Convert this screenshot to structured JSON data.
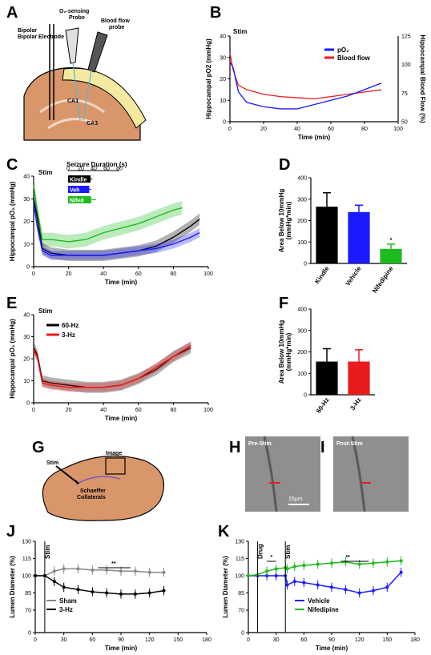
{
  "panels": {
    "A": "A",
    "B": "B",
    "C": "C",
    "D": "D",
    "E": "E",
    "F": "F",
    "G": "G",
    "H": "H",
    "I": "I",
    "J": "J",
    "K": "K"
  },
  "A": {
    "electrode": "Bipolar Electrode",
    "o2_probe_line1": "O₂-sensing",
    "o2_probe_line2": "Probe",
    "bf_line1": "Blood flow",
    "bf_line2": "probe",
    "ca1": "CA1",
    "ca3": "CA3"
  },
  "B": {
    "stim": "Stim",
    "ylabel": "Hippocampal pO2 (mmHg)",
    "y2label": "Hippocampal Blood Flow (%)",
    "xlabel": "Time (min)",
    "legend_po2": "pO₂",
    "legend_bf": "Blood flow",
    "yticks": [
      "0",
      "10",
      "20",
      "30",
      "40"
    ],
    "y2ticks": [
      "50",
      "75",
      "100",
      "125"
    ],
    "xticks": [
      "0",
      "20",
      "40",
      "60",
      "80",
      "100"
    ]
  },
  "C": {
    "stim": "Stim",
    "ylabel": "Hippocampal pO₂ (mmHg)",
    "xlabel": "Time (min)",
    "yticks": [
      "0",
      "10",
      "20",
      "30",
      "40"
    ],
    "xticks": [
      "0",
      "20",
      "40",
      "60",
      "80",
      "100"
    ],
    "inset_title": "Seizure Duration (s)",
    "inset_ticks": [
      "0",
      "20",
      "40",
      "60",
      "80"
    ],
    "inset_bars": [
      "Kindle",
      "Veh",
      "Nifed"
    ]
  },
  "D": {
    "ylabel_line1": "Area Below 10mmHg",
    "ylabel_line2": "(mmHg*min)",
    "yticks": [
      "0",
      "100",
      "200",
      "300",
      "400"
    ],
    "star": "*"
  },
  "E": {
    "stim": "Stim",
    "ylabel": "Hippocampal pO₂ (mmHg)",
    "xlabel": "Time (min)",
    "yticks": [
      "0",
      "10",
      "20",
      "30",
      "40"
    ],
    "xticks": [
      "0",
      "20",
      "40",
      "60",
      "80",
      "100"
    ],
    "legend_a": "60-Hz",
    "legend_b": "3-Hz"
  },
  "F": {
    "ylabel_line1": "Area Below 10mmHg",
    "ylabel_line2": "(mmHg*min)",
    "yticks": [
      "0",
      "100",
      "200",
      "300",
      "400"
    ]
  },
  "G": {
    "stim": "Stim",
    "image": "Image",
    "collat1": "Schaeffer",
    "collat2": "Collaterals"
  },
  "H": {
    "label": "Pre-Stim",
    "scalebar": "15μm"
  },
  "I": {
    "label": "Post-Stim"
  },
  "J": {
    "stim": "Stim",
    "stars": "**",
    "ylabel": "Lumen Diameter (%)",
    "xlabel": "Time (min)",
    "yticks": [
      "0",
      "70",
      "85",
      "100",
      "115",
      "130"
    ],
    "xticks": [
      "0",
      "30",
      "60",
      "90",
      "120",
      "150",
      "180"
    ],
    "legend_sham": "Sham",
    "legend_3hz": "3-Hz"
  },
  "K": {
    "drug": "Drug",
    "stim": "Stim",
    "star1": "*",
    "stars": "**",
    "ylabel": "Lumen Diameter (%)",
    "xlabel": "Time (min)",
    "yticks": [
      "0",
      "70",
      "85",
      "100",
      "115",
      "130"
    ],
    "xticks": [
      "0",
      "30",
      "60",
      "90",
      "120",
      "150",
      "180"
    ],
    "legend_veh": "Vehicle",
    "legend_nif": "Nifedipine"
  },
  "colors": {
    "blue": "#1a1aff",
    "red": "#e81c1c",
    "green": "#1dbb1d",
    "black": "#000000",
    "gray": "#888888",
    "tissue": "#d9966a"
  },
  "chart_data": [
    {
      "panel": "B",
      "type": "line",
      "xlabel": "Time (min)",
      "ylabel": "Hippocampal pO2 (mmHg)",
      "xlim": [
        0,
        100
      ],
      "ylim": [
        0,
        40
      ],
      "series": [
        {
          "name": "pO₂",
          "axis": "left",
          "x": [
            0,
            2,
            5,
            10,
            20,
            30,
            40,
            50,
            60,
            70,
            80,
            90
          ],
          "values": [
            28,
            25,
            14,
            9,
            7,
            6,
            6,
            8,
            10,
            12,
            15,
            18
          ]
        },
        {
          "name": "Blood flow",
          "axis": "right",
          "y2lim": [
            50,
            125
          ],
          "x": [
            0,
            2,
            5,
            10,
            20,
            30,
            40,
            50,
            60,
            70,
            80,
            90
          ],
          "values": [
            110,
            95,
            82,
            78,
            74,
            72,
            71,
            70,
            72,
            74,
            76,
            78
          ]
        }
      ]
    },
    {
      "panel": "C",
      "type": "line",
      "xlabel": "Time (min)",
      "ylabel": "Hippocampal pO₂ (mmHg)",
      "xlim": [
        0,
        100
      ],
      "ylim": [
        0,
        40
      ],
      "series": [
        {
          "name": "Kindle",
          "x": [
            0,
            2,
            5,
            10,
            20,
            30,
            40,
            50,
            60,
            70,
            80,
            90,
            95
          ],
          "values": [
            30,
            22,
            8,
            6,
            5,
            5,
            5,
            6,
            7,
            9,
            13,
            18,
            21
          ]
        },
        {
          "name": "Vehicle",
          "x": [
            0,
            2,
            5,
            10,
            20,
            30,
            40,
            50,
            60,
            70,
            80,
            90,
            95
          ],
          "values": [
            28,
            18,
            7,
            5,
            5,
            5,
            5,
            6,
            7,
            8,
            10,
            13,
            15
          ]
        },
        {
          "name": "Nifedipine",
          "x": [
            0,
            2,
            5,
            10,
            20,
            30,
            40,
            50,
            60,
            70,
            80,
            85
          ],
          "values": [
            36,
            25,
            12,
            12,
            11,
            12,
            15,
            17,
            19,
            22,
            25,
            26
          ]
        }
      ],
      "inset": {
        "title": "Seizure Duration (s)",
        "categories": [
          "Kindle",
          "Veh",
          "Nifed"
        ],
        "values": [
          35,
          33,
          36
        ],
        "errors": [
          3,
          3,
          8
        ],
        "xlim": [
          0,
          80
        ]
      }
    },
    {
      "panel": "D",
      "type": "bar",
      "ylabel": "Area Below 10mmHg (mmHg*min)",
      "ylim": [
        0,
        400
      ],
      "categories": [
        "Kindle",
        "Vehicle",
        "Nifedipine"
      ],
      "values": [
        265,
        240,
        68
      ],
      "errors": [
        65,
        32,
        22
      ]
    },
    {
      "panel": "E",
      "type": "line",
      "xlabel": "Time (min)",
      "ylabel": "Hippocampal pO₂ (mmHg)",
      "xlim": [
        0,
        100
      ],
      "ylim": [
        0,
        40
      ],
      "series": [
        {
          "name": "60-Hz",
          "x": [
            0,
            2,
            5,
            10,
            20,
            30,
            40,
            50,
            60,
            70,
            80,
            90
          ],
          "values": [
            25,
            22,
            10,
            9,
            8,
            7,
            7,
            8,
            11,
            15,
            21,
            25
          ]
        },
        {
          "name": "3-Hz",
          "x": [
            0,
            2,
            5,
            10,
            20,
            30,
            40,
            50,
            60,
            70,
            80,
            90
          ],
          "values": [
            24,
            21,
            9,
            8,
            7,
            7,
            7,
            8,
            11,
            16,
            21,
            26
          ]
        }
      ]
    },
    {
      "panel": "F",
      "type": "bar",
      "ylabel": "Area Below 10mmHg (mmHg*min)",
      "ylim": [
        0,
        400
      ],
      "categories": [
        "60-Hz",
        "3-Hz"
      ],
      "values": [
        155,
        155
      ],
      "errors": [
        60,
        55
      ]
    },
    {
      "panel": "J",
      "type": "line",
      "xlabel": "Time (min)",
      "ylabel": "Lumen Diameter (%)",
      "xlim": [
        0,
        180
      ],
      "ylim": [
        70,
        130
      ],
      "series": [
        {
          "name": "Sham",
          "x": [
            0,
            10,
            20,
            30,
            45,
            60,
            75,
            90,
            105,
            120,
            135
          ],
          "values": [
            100,
            100,
            104,
            106,
            106,
            105,
            105,
            104,
            104,
            103,
            103
          ]
        },
        {
          "name": "3-Hz",
          "x": [
            0,
            10,
            20,
            30,
            45,
            60,
            75,
            90,
            105,
            120,
            135
          ],
          "values": [
            100,
            100,
            95,
            90,
            88,
            86,
            85,
            84,
            84,
            85,
            87
          ]
        }
      ]
    },
    {
      "panel": "K",
      "type": "line",
      "xlabel": "Time (min)",
      "ylabel": "Lumen Diameter (%)",
      "xlim": [
        0,
        180
      ],
      "ylim": [
        70,
        130
      ],
      "series": [
        {
          "name": "Vehicle",
          "x": [
            0,
            10,
            20,
            30,
            40,
            42,
            50,
            60,
            75,
            90,
            105,
            120,
            135,
            150,
            165
          ],
          "values": [
            100,
            100,
            100,
            100,
            100,
            92,
            95,
            94,
            92,
            90,
            88,
            85,
            87,
            90,
            103
          ]
        },
        {
          "name": "Nifedipine",
          "x": [
            0,
            10,
            20,
            30,
            40,
            42,
            50,
            60,
            75,
            90,
            105,
            120,
            135,
            150,
            165
          ],
          "values": [
            100,
            101,
            104,
            106,
            107,
            106,
            108,
            109,
            110,
            111,
            112,
            110,
            111,
            112,
            113
          ]
        }
      ]
    }
  ]
}
